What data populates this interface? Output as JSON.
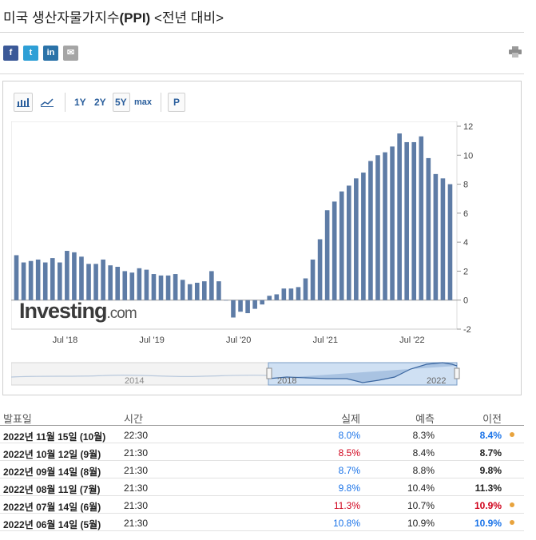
{
  "header": {
    "title_prefix": "미국 생산자물가지수",
    "title_bold": "(PPI)",
    "title_suffix": " <전년 대비>"
  },
  "share": {
    "facebook_label": "f",
    "twitter_label": "t",
    "linkedin_label": "in",
    "email_label": "✉"
  },
  "toolbar": {
    "range_1y": "1Y",
    "range_2y": "2Y",
    "range_5y": "5Y",
    "range_max": "max",
    "p_label": "P",
    "selected_range": "5Y"
  },
  "chart_data": {
    "type": "bar",
    "title": "",
    "xlabel": "",
    "ylabel": "",
    "ylim": [
      -2,
      12
    ],
    "yticks": [
      -2,
      0,
      2,
      4,
      6,
      8,
      10,
      12
    ],
    "x_tick_labels": [
      "Jul '18",
      "Jul '19",
      "Jul '20",
      "Jul '21",
      "Jul '22"
    ],
    "x_tick_month_index": [
      0,
      12,
      24,
      36,
      48
    ],
    "bar_color": "#5e7ca6",
    "watermark": "Investing.com",
    "values": [
      3.1,
      2.6,
      2.7,
      2.8,
      2.6,
      2.9,
      2.6,
      3.4,
      3.3,
      3.0,
      2.5,
      2.5,
      2.8,
      2.4,
      2.3,
      2.0,
      1.9,
      2.2,
      2.1,
      1.8,
      1.7,
      1.7,
      1.8,
      1.4,
      1.1,
      1.2,
      1.3,
      2.0,
      1.3,
      0.0,
      -1.2,
      -0.8,
      -0.9,
      -0.6,
      -0.3,
      0.3,
      0.4,
      0.8,
      0.8,
      0.9,
      1.5,
      2.8,
      4.2,
      6.2,
      6.8,
      7.5,
      7.9,
      8.4,
      8.8,
      9.6,
      10.0,
      10.2,
      10.6,
      11.5,
      10.9,
      10.9,
      11.3,
      9.8,
      8.7,
      8.4,
      8.0
    ]
  },
  "navigator": {
    "label_left": "2014",
    "label_mid": "2018",
    "label_right": "2022"
  },
  "table": {
    "headers": {
      "date": "발표일",
      "time": "시간",
      "actual": "실제",
      "forecast": "예측",
      "previous": "이전"
    },
    "rows": [
      {
        "date": "2022년 11월 15일 (10월)",
        "time": "22:30",
        "actual": "8.0%",
        "actual_color": "#1a73e8",
        "forecast": "8.3%",
        "previous": "8.4%",
        "previous_color": "#1a73e8",
        "dot": true
      },
      {
        "date": "2022년 10월 12일 (9월)",
        "time": "21:30",
        "actual": "8.5%",
        "actual_color": "#d0021b",
        "forecast": "8.4%",
        "previous": "8.7%",
        "previous_color": "#222222",
        "dot": false
      },
      {
        "date": "2022년 09월 14일 (8월)",
        "time": "21:30",
        "actual": "8.7%",
        "actual_color": "#1a73e8",
        "forecast": "8.8%",
        "previous": "9.8%",
        "previous_color": "#222222",
        "dot": false
      },
      {
        "date": "2022년 08월 11일 (7월)",
        "time": "21:30",
        "actual": "9.8%",
        "actual_color": "#1a73e8",
        "forecast": "10.4%",
        "previous": "11.3%",
        "previous_color": "#222222",
        "dot": false
      },
      {
        "date": "2022년 07월 14일 (6월)",
        "time": "21:30",
        "actual": "11.3%",
        "actual_color": "#d0021b",
        "forecast": "10.7%",
        "previous": "10.9%",
        "previous_color": "#d0021b",
        "dot": true
      },
      {
        "date": "2022년 06월 14일 (5월)",
        "time": "21:30",
        "actual": "10.8%",
        "actual_color": "#1a73e8",
        "forecast": "10.9%",
        "previous": "10.9%",
        "previous_color": "#1a73e8",
        "dot": true
      }
    ],
    "dot_color": "#e8a33d"
  }
}
